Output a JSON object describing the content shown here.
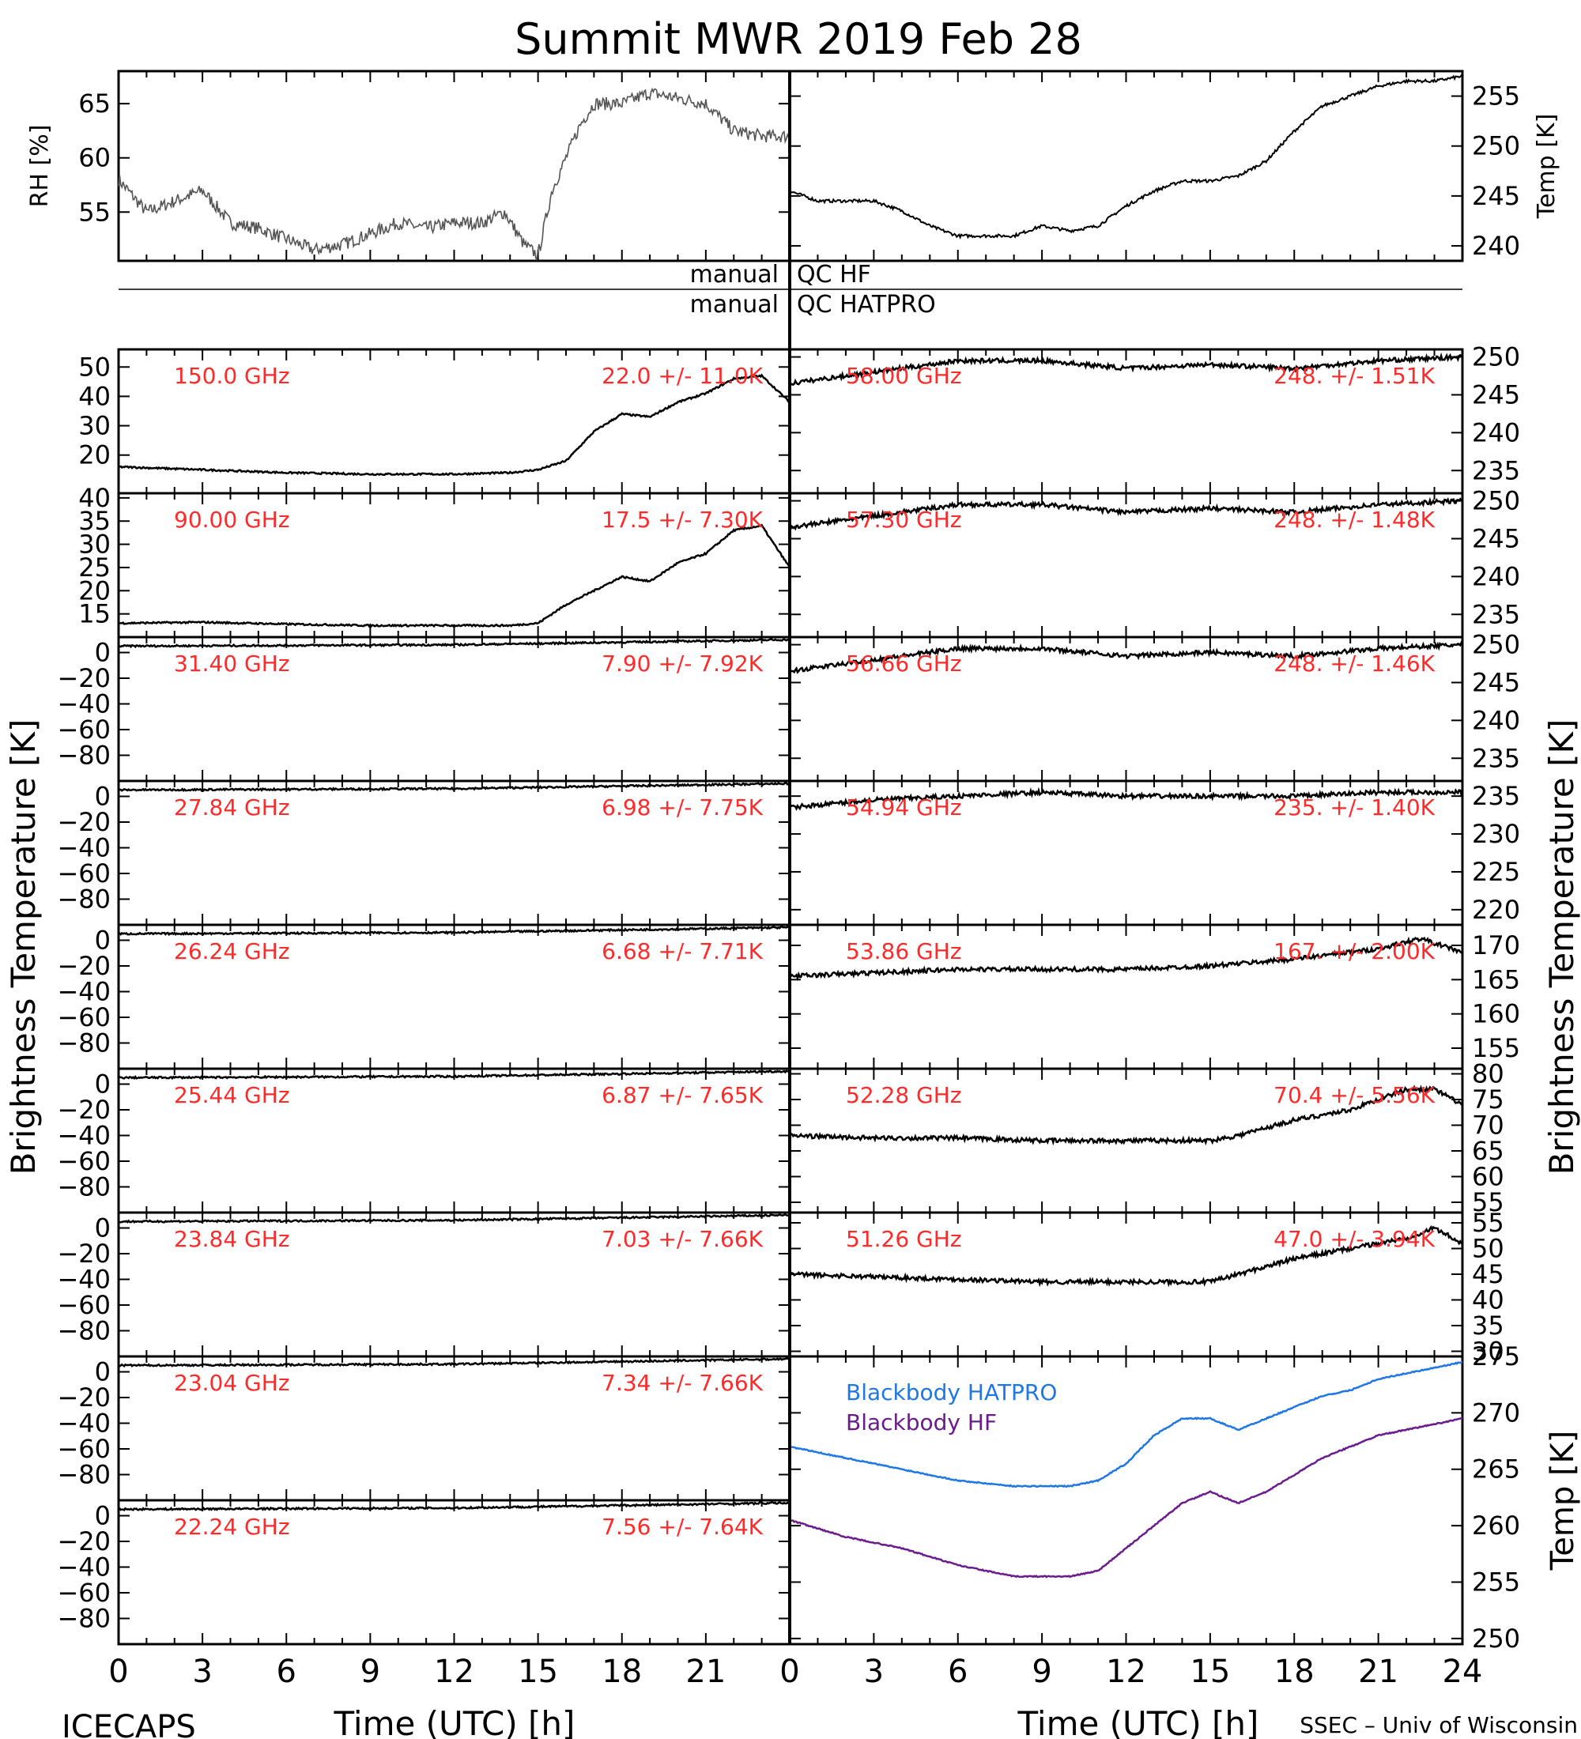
{
  "title": "Summit MWR 2019 Feb 28",
  "footer": {
    "left": "ICECAPS",
    "right": "SSEC – Univ of Wisconsin"
  },
  "axis": {
    "x_label": "Time (UTC) [h]",
    "left_label": "Brightness Temperature [K]",
    "right_label": "Brightness Temperature [K]",
    "x_ticks": [
      "0",
      "3",
      "6",
      "9",
      "12",
      "15",
      "18",
      "21",
      "24"
    ],
    "left_x_ticks": [
      "0",
      "3",
      "6",
      "9",
      "12",
      "15",
      "18",
      "21"
    ]
  },
  "qc": {
    "hf_left": "manual",
    "hf_right": "QC HF",
    "hatpro_left": "manual",
    "hatpro_right": "QC HATPRO"
  },
  "colors": {
    "label": "#ff2a2a",
    "hatpro": "#1f77e6",
    "hf": "#6a1b8c",
    "data": "#000000"
  },
  "chart_data": [
    {
      "type": "scatter",
      "panel": "rh",
      "ylabel": "RH [%]",
      "ylim": [
        50.5,
        68
      ],
      "yticks": [
        "55",
        "60",
        "65"
      ],
      "xlim": [
        0,
        24
      ],
      "series": [
        {
          "x": [
            0,
            1,
            2,
            3,
            4,
            5,
            6,
            7,
            8,
            9,
            10,
            11,
            12,
            13,
            13.8,
            14.5,
            15,
            15.5,
            16,
            16.5,
            17,
            18,
            19,
            20,
            21,
            22,
            23,
            24
          ],
          "values": [
            58,
            55,
            56,
            57,
            54,
            53.5,
            52.5,
            51.5,
            52,
            53,
            54,
            53.5,
            54,
            54,
            55,
            52,
            51,
            57,
            60,
            63,
            65,
            65,
            66,
            65.5,
            65,
            62.5,
            62,
            62
          ]
        }
      ]
    },
    {
      "type": "line",
      "panel": "temp",
      "ylabel": "Temp [K]",
      "ylim": [
        238.5,
        257.5
      ],
      "yticks": [
        "240",
        "245",
        "250",
        "255"
      ],
      "xlim": [
        0,
        24
      ],
      "series": [
        {
          "x": [
            0,
            1,
            2,
            3,
            4,
            5,
            6,
            7,
            8,
            9,
            10,
            11,
            12,
            13,
            14,
            15,
            16,
            17,
            18,
            19,
            20,
            21,
            22,
            23,
            24
          ],
          "values": [
            245.5,
            244.5,
            244.5,
            244.5,
            243.5,
            242,
            241,
            241,
            241,
            242,
            241.5,
            242,
            244,
            245.5,
            246.5,
            246.5,
            247,
            248.5,
            251.5,
            254,
            255,
            256,
            256.5,
            256.5,
            257
          ]
        }
      ]
    }
  ],
  "left_channels": [
    {
      "freq": "150.0 GHz",
      "stats": "22.0 +/- 11.0K",
      "ylim": [
        7,
        56
      ],
      "yticks": [
        "20",
        "30",
        "40",
        "50"
      ],
      "x": [
        0,
        3,
        6,
        9,
        12,
        14,
        15,
        16,
        17,
        18,
        19,
        20,
        21,
        22,
        23,
        24
      ],
      "values": [
        16,
        15,
        14,
        13.5,
        13.5,
        14,
        15,
        18,
        28,
        34,
        33,
        38,
        41,
        46,
        47,
        38
      ]
    },
    {
      "freq": "90.00 GHz",
      "stats": "17.5 +/- 7.30K",
      "ylim": [
        10,
        41
      ],
      "yticks": [
        "15",
        "20",
        "25",
        "30",
        "35",
        "40"
      ],
      "x": [
        0,
        3,
        6,
        9,
        12,
        14,
        15,
        16,
        17,
        18,
        19,
        20,
        21,
        22,
        23,
        24
      ],
      "values": [
        13,
        13.2,
        12.8,
        12.5,
        12.5,
        12.5,
        13,
        17,
        20,
        23,
        22,
        26,
        28,
        33,
        34,
        25
      ]
    },
    {
      "freq": "31.40 GHz",
      "stats": "7.90 +/- 7.92K",
      "ylim": [
        -100,
        12
      ],
      "yticks": [
        "0",
        "−20",
        "−40",
        "−60",
        "−80"
      ],
      "x": [
        0,
        12,
        24
      ],
      "values": [
        5,
        6,
        10
      ]
    },
    {
      "freq": "27.84 GHz",
      "stats": "6.98 +/- 7.75K",
      "ylim": [
        -100,
        12
      ],
      "yticks": [
        "0",
        "−20",
        "−40",
        "−60",
        "−80"
      ],
      "x": [
        0,
        12,
        24
      ],
      "values": [
        5,
        6,
        10
      ]
    },
    {
      "freq": "26.24 GHz",
      "stats": "6.68 +/- 7.71K",
      "ylim": [
        -100,
        12
      ],
      "yticks": [
        "0",
        "−20",
        "−40",
        "−60",
        "−80"
      ],
      "x": [
        0,
        12,
        24
      ],
      "values": [
        5,
        6,
        10
      ]
    },
    {
      "freq": "25.44 GHz",
      "stats": "6.87 +/- 7.65K",
      "ylim": [
        -100,
        12
      ],
      "yticks": [
        "0",
        "−20",
        "−40",
        "−60",
        "−80"
      ],
      "x": [
        0,
        12,
        24
      ],
      "values": [
        5,
        6,
        10
      ]
    },
    {
      "freq": "23.84 GHz",
      "stats": "7.03 +/- 7.66K",
      "ylim": [
        -100,
        12
      ],
      "yticks": [
        "0",
        "−20",
        "−40",
        "−60",
        "−80"
      ],
      "x": [
        0,
        12,
        24
      ],
      "values": [
        5,
        6,
        10
      ]
    },
    {
      "freq": "23.04 GHz",
      "stats": "7.34 +/- 7.66K",
      "ylim": [
        -100,
        12
      ],
      "yticks": [
        "0",
        "−20",
        "−40",
        "−60",
        "−80"
      ],
      "x": [
        0,
        12,
        24
      ],
      "values": [
        5,
        6,
        10
      ]
    },
    {
      "freq": "22.24 GHz",
      "stats": "7.56 +/- 7.64K",
      "ylim": [
        -100,
        12
      ],
      "yticks": [
        "0",
        "−20",
        "−40",
        "−60",
        "−80"
      ],
      "x": [
        0,
        12,
        24
      ],
      "values": [
        5,
        6,
        10
      ]
    }
  ],
  "right_channels": [
    {
      "freq": "58.00 GHz",
      "stats": "248. +/- 1.51K",
      "ylim": [
        232,
        251
      ],
      "yticks": [
        "235",
        "240",
        "245",
        "250"
      ],
      "x": [
        0,
        3,
        6,
        9,
        12,
        15,
        18,
        21,
        24
      ],
      "values": [
        246.5,
        248,
        249.5,
        249.5,
        248.5,
        249,
        248.5,
        249.5,
        250
      ]
    },
    {
      "freq": "57.30 GHz",
      "stats": "248. +/- 1.48K",
      "ylim": [
        232,
        251
      ],
      "yticks": [
        "235",
        "240",
        "245",
        "250"
      ],
      "x": [
        0,
        3,
        6,
        9,
        12,
        15,
        18,
        21,
        24
      ],
      "values": [
        246.5,
        248,
        249.5,
        249.5,
        248.5,
        249,
        248.5,
        249.5,
        250
      ]
    },
    {
      "freq": "56.66 GHz",
      "stats": "248. +/- 1.46K",
      "ylim": [
        232,
        251
      ],
      "yticks": [
        "235",
        "240",
        "245",
        "250"
      ],
      "x": [
        0,
        3,
        6,
        9,
        12,
        15,
        18,
        21,
        24
      ],
      "values": [
        246.5,
        248,
        249.5,
        249.5,
        248.5,
        249,
        248.5,
        249.5,
        250
      ]
    },
    {
      "freq": "54.94 GHz",
      "stats": "235. +/- 1.40K",
      "ylim": [
        218,
        237
      ],
      "yticks": [
        "220",
        "225",
        "230",
        "235"
      ],
      "x": [
        0,
        3,
        6,
        9,
        12,
        15,
        18,
        21,
        24
      ],
      "values": [
        233.5,
        234.5,
        235,
        235.5,
        235,
        235,
        235,
        235.5,
        235.5
      ]
    },
    {
      "freq": "53.86 GHz",
      "stats": "167. +/- 2.00K",
      "ylim": [
        152,
        173
      ],
      "yticks": [
        "155",
        "160",
        "165",
        "170"
      ],
      "x": [
        0,
        3,
        6,
        9,
        12,
        15,
        18,
        21,
        22.5,
        24
      ],
      "values": [
        165.5,
        166,
        166.5,
        166.5,
        166.5,
        167,
        168,
        169.5,
        171,
        169
      ]
    },
    {
      "freq": "52.28 GHz",
      "stats": "70.4 +/- 5.56K",
      "ylim": [
        53,
        81
      ],
      "yticks": [
        "55",
        "60",
        "65",
        "70",
        "75",
        "80"
      ],
      "x": [
        0,
        3,
        6,
        9,
        12,
        15,
        16,
        18,
        20,
        22,
        23,
        24
      ],
      "values": [
        68,
        67.5,
        67.5,
        67,
        67,
        67,
        68,
        71,
        73,
        77,
        77,
        74
      ]
    },
    {
      "freq": "51.26 GHz",
      "stats": "47.0 +/- 3.94K",
      "ylim": [
        29,
        57
      ],
      "yticks": [
        "30",
        "35",
        "40",
        "45",
        "50",
        "55"
      ],
      "x": [
        0,
        3,
        6,
        9,
        12,
        15,
        16,
        18,
        20,
        22,
        23,
        24
      ],
      "values": [
        45,
        44.5,
        44,
        43.5,
        43.5,
        43.5,
        45,
        48,
        50,
        52,
        54,
        51
      ]
    }
  ],
  "blackbody": {
    "ylabel": "Temp [K]",
    "ylim": [
      249.5,
      275
    ],
    "yticks": [
      "250",
      "255",
      "260",
      "265",
      "270",
      "275"
    ],
    "hatpro": {
      "name": "Blackbody HATPRO",
      "x": [
        0,
        2,
        4,
        6,
        8,
        10,
        11,
        12,
        13,
        14,
        15,
        16,
        17,
        18,
        19,
        20,
        21,
        22,
        23,
        24
      ],
      "values": [
        267,
        266,
        265,
        264,
        263.5,
        263.5,
        264,
        265.5,
        268,
        269.5,
        269.5,
        268.5,
        269.5,
        270.5,
        271.5,
        272,
        273,
        273.5,
        274,
        274.5
      ]
    },
    "hf": {
      "name": "Blackbody HF",
      "x": [
        0,
        2,
        4,
        6,
        8,
        10,
        11,
        12,
        13,
        14,
        15,
        16,
        17,
        18,
        19,
        20,
        21,
        22,
        23,
        24
      ],
      "values": [
        260.5,
        259,
        258,
        256.5,
        255.5,
        255.5,
        256,
        258,
        260,
        262,
        263,
        262,
        263,
        264.5,
        266,
        267,
        268,
        268.5,
        269,
        269.5
      ]
    }
  }
}
